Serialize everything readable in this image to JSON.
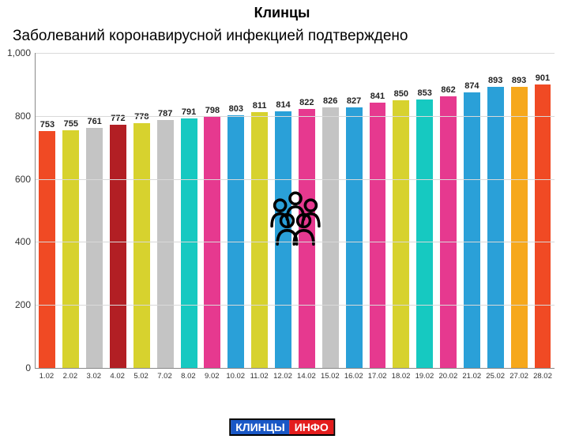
{
  "title": "Клинцы",
  "title_fontsize": 18,
  "subtitle": "Заболеваний коронавирусной инфекцией подтверждено",
  "subtitle_fontsize": 19,
  "chart": {
    "type": "bar",
    "ylim": [
      0,
      1000
    ],
    "ytick_step": 200,
    "yticks": [
      0,
      200,
      400,
      600,
      800,
      1000
    ],
    "grid_color": "#d9d9d9",
    "axis_color": "#898989",
    "background_color": "#ffffff",
    "value_label_fontsize": 11,
    "x_label_fontsize": 9.5,
    "y_label_fontsize": 12,
    "bar_width": 0.7,
    "categories": [
      "1.02",
      "2.02",
      "3.02",
      "4.02",
      "5.02",
      "7.02",
      "8.02",
      "9.02",
      "10.02",
      "11.02",
      "12.02",
      "14.02",
      "15.02",
      "16.02",
      "17.02",
      "18.02",
      "19.02",
      "20.02",
      "21.02",
      "25.02",
      "27.02",
      "28.02"
    ],
    "values": [
      753,
      755,
      761,
      772,
      778,
      787,
      791,
      798,
      803,
      811,
      814,
      822,
      826,
      827,
      841,
      850,
      853,
      862,
      874,
      893,
      893,
      901
    ],
    "bar_colors": [
      "#f04a24",
      "#d7d22e",
      "#c4c4c4",
      "#b21f24",
      "#d7d22e",
      "#c4c4c4",
      "#16c9c1",
      "#e6398f",
      "#2aa0d8",
      "#d7d22e",
      "#2aa0d8",
      "#e6398f",
      "#c4c4c4",
      "#2aa0d8",
      "#e6398f",
      "#d7d22e",
      "#16c9c1",
      "#e6398f",
      "#2aa0d8",
      "#2aa0d8",
      "#f6a81c",
      "#f04a24"
    ]
  },
  "overlay": {
    "icon_name": "people-group-icon",
    "stroke": "#000000",
    "width": 88,
    "height": 88
  },
  "footer": {
    "part_a": "КЛИНЦЫ",
    "part_b": "ИНФО",
    "part_a_bg": "#1957c6",
    "part_b_bg": "#e41d1d",
    "text_color": "#ffffff"
  }
}
